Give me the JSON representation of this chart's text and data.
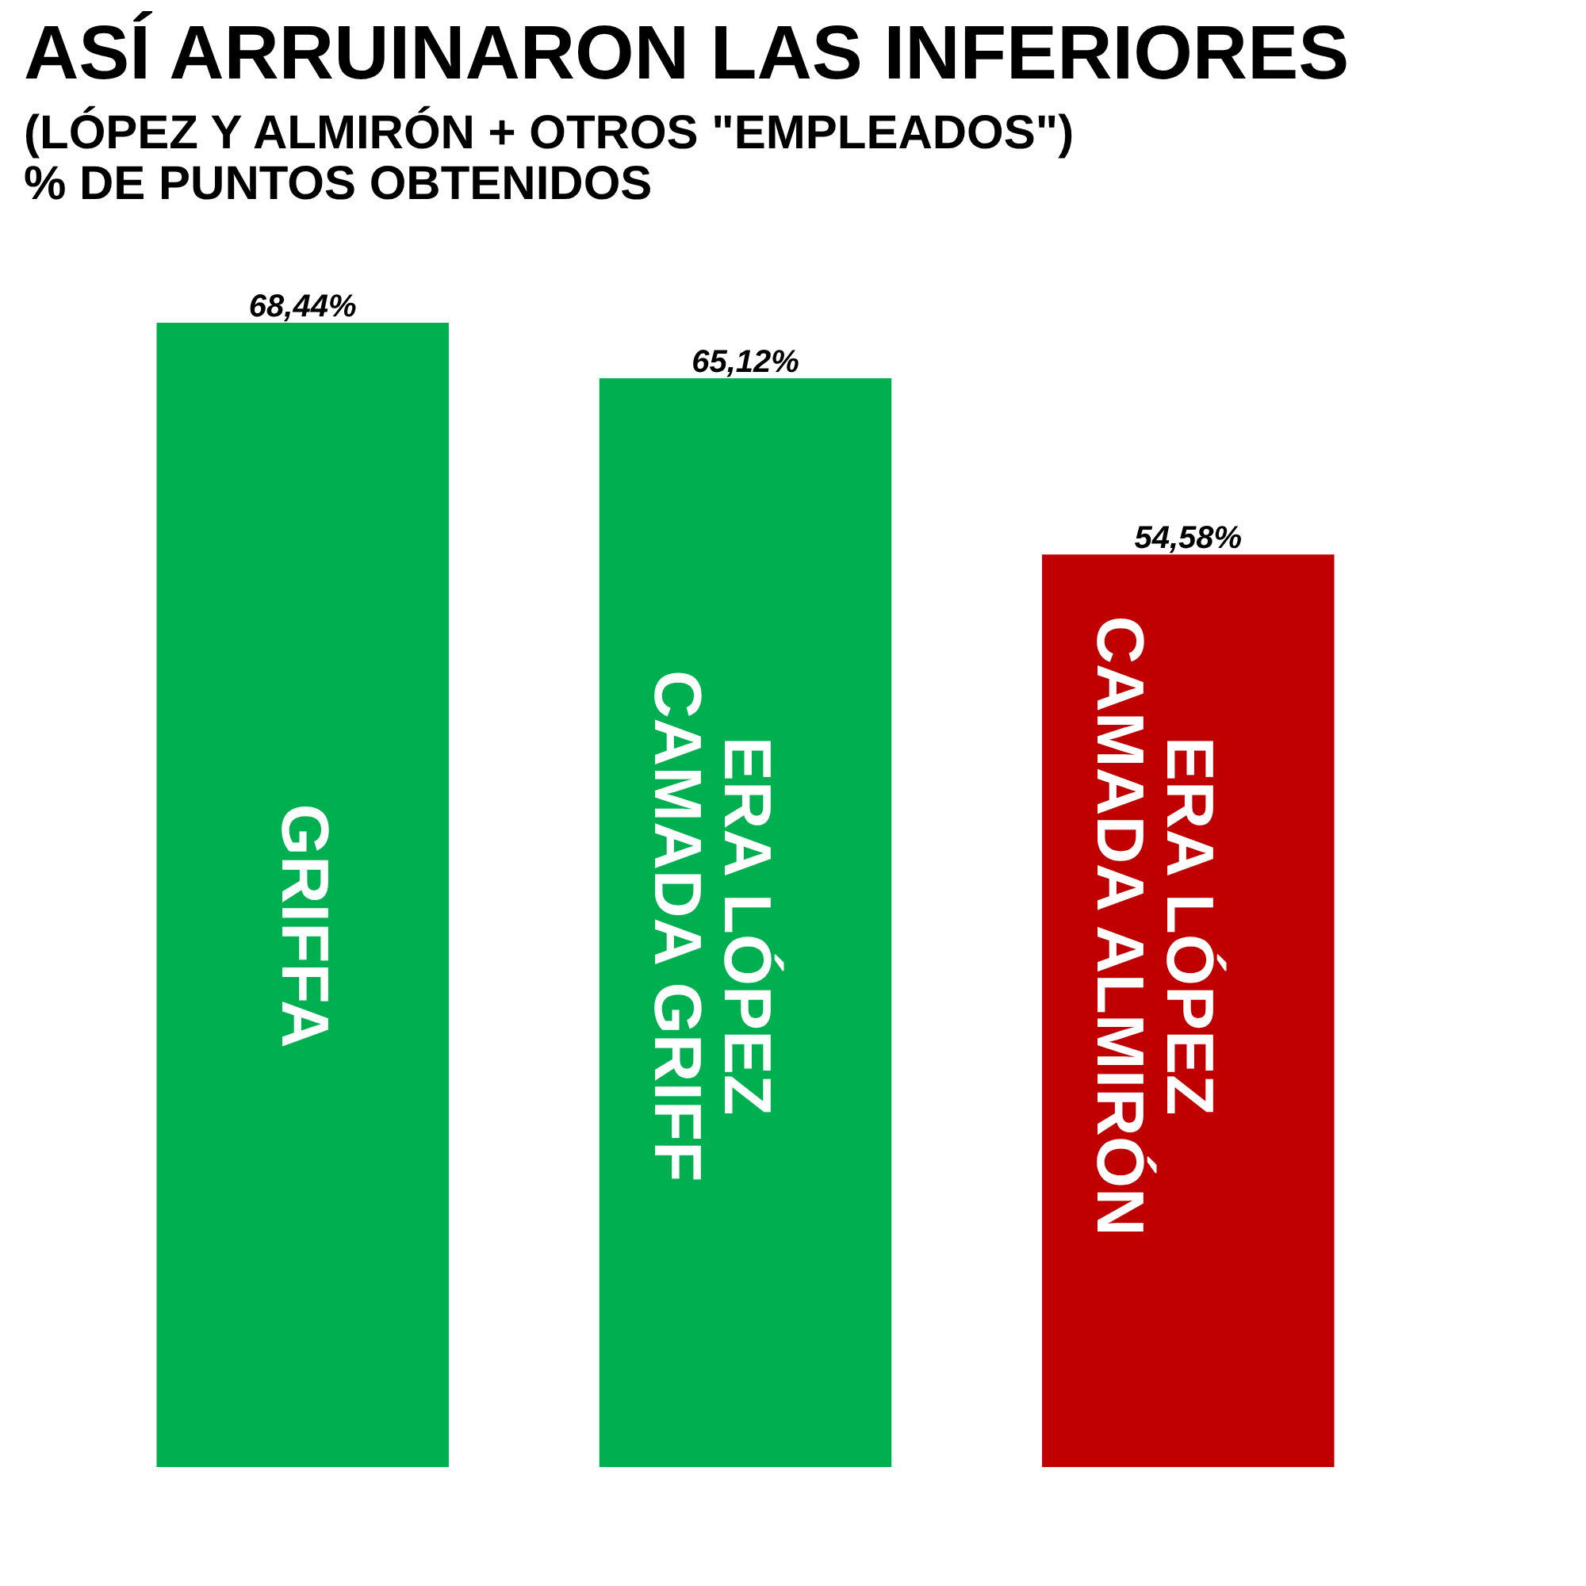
{
  "chart_data": {
    "type": "bar",
    "title": "ASÍ ARRUINARON LAS INFERIORES",
    "subtitle": "(LÓPEZ Y ALMIRÓN + OTROS \"EMPLEADOS\")",
    "annotations": [
      "% DE PUNTOS OBTENIDOS"
    ],
    "categories": [
      "GRIFFA",
      "ERA LÓPEZ\nCAMADA GRIFF",
      "ERA LÓPEZ\nCAMADA ALMIRÓN"
    ],
    "values": [
      68.44,
      65.12,
      54.58
    ],
    "value_labels": [
      "68,44%",
      "65,12%",
      "54,58%"
    ],
    "colors": [
      "#00b050",
      "#00b050",
      "#c00000"
    ],
    "tick_labels": false
  }
}
